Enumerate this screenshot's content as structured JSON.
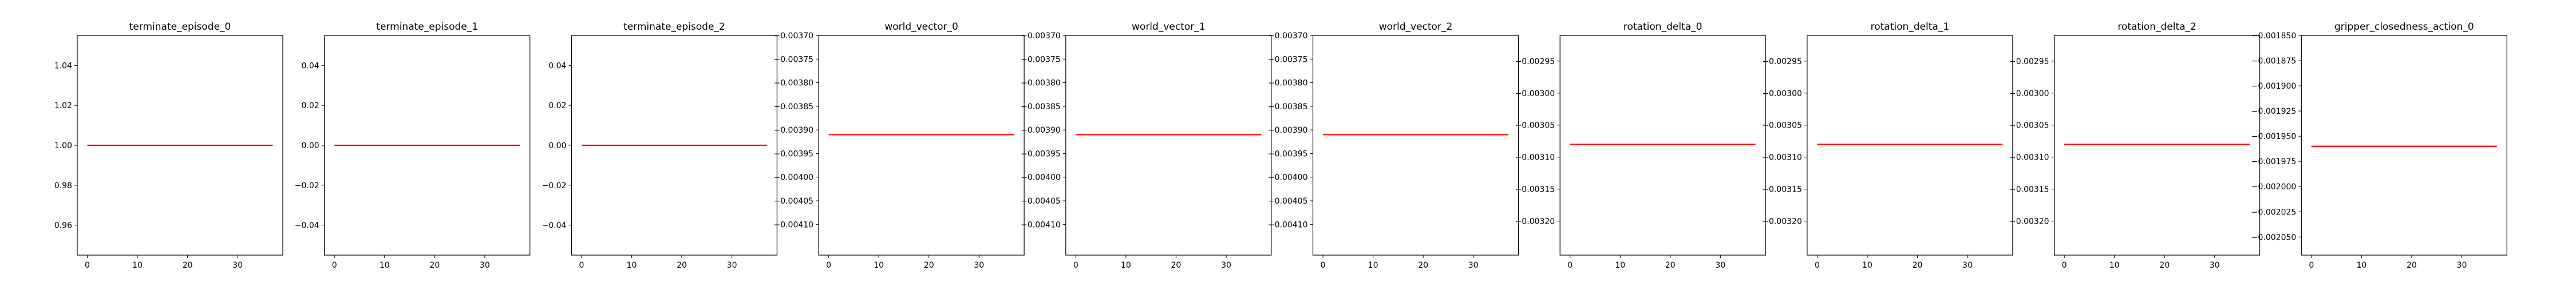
{
  "figure": {
    "panel_count": 10
  },
  "chart_data": [
    {
      "type": "line",
      "title": "terminate_episode_0",
      "xlim": [
        -2,
        39
      ],
      "ylim": [
        0.945,
        1.055
      ],
      "x_ticks": [
        0,
        10,
        20,
        30
      ],
      "x_tick_labels": [
        "0",
        "10",
        "20",
        "30"
      ],
      "y_ticks": [
        1.04,
        1.02,
        1.0,
        0.98,
        0.96
      ],
      "y_tick_labels": [
        "1.04",
        "1.02",
        "1.00",
        "0.98",
        "0.96"
      ],
      "series": [
        {
          "color": "#ff0000",
          "x": [
            0,
            37
          ],
          "y": [
            1.0,
            1.0
          ]
        }
      ],
      "grid": false
    },
    {
      "type": "line",
      "title": "terminate_episode_1",
      "xlim": [
        -2,
        39
      ],
      "ylim": [
        -0.055,
        0.055
      ],
      "x_ticks": [
        0,
        10,
        20,
        30
      ],
      "x_tick_labels": [
        "0",
        "10",
        "20",
        "30"
      ],
      "y_ticks": [
        0.04,
        0.02,
        0.0,
        -0.02,
        -0.04
      ],
      "y_tick_labels": [
        "0.04",
        "0.02",
        "0.00",
        "−0.02",
        "−0.04"
      ],
      "series": [
        {
          "color": "#ff0000",
          "x": [
            0,
            37
          ],
          "y": [
            0.0,
            0.0
          ]
        }
      ],
      "grid": false
    },
    {
      "type": "line",
      "title": "terminate_episode_2",
      "xlim": [
        -2,
        39
      ],
      "ylim": [
        -0.055,
        0.055
      ],
      "x_ticks": [
        0,
        10,
        20,
        30
      ],
      "x_tick_labels": [
        "0",
        "10",
        "20",
        "30"
      ],
      "y_ticks": [
        0.04,
        0.02,
        0.0,
        -0.02,
        -0.04
      ],
      "y_tick_labels": [
        "0.04",
        "0.02",
        "0.00",
        "−0.02",
        "−0.04"
      ],
      "series": [
        {
          "color": "#ff0000",
          "x": [
            0,
            37
          ],
          "y": [
            0.0,
            0.0
          ]
        }
      ],
      "grid": false
    },
    {
      "type": "line",
      "title": "world_vector_0",
      "xlim": [
        -2,
        39
      ],
      "ylim": [
        -0.004165,
        -0.0037
      ],
      "x_ticks": [
        0,
        10,
        20,
        30
      ],
      "x_tick_labels": [
        "0",
        "10",
        "20",
        "30"
      ],
      "y_ticks": [
        -0.0037,
        -0.00375,
        -0.0038,
        -0.00385,
        -0.0039,
        -0.00395,
        -0.004,
        -0.00405,
        -0.0041
      ],
      "y_tick_labels": [
        "−0.00370",
        "−0.00375",
        "−0.00380",
        "−0.00385",
        "−0.00390",
        "−0.00395",
        "−0.00400",
        "−0.00405",
        "−0.00410"
      ],
      "series": [
        {
          "color": "#ff0000",
          "x": [
            0,
            37
          ],
          "y": [
            -0.00391,
            -0.00391
          ]
        }
      ],
      "grid": false
    },
    {
      "type": "line",
      "title": "world_vector_1",
      "xlim": [
        -2,
        39
      ],
      "ylim": [
        -0.004165,
        -0.0037
      ],
      "x_ticks": [
        0,
        10,
        20,
        30
      ],
      "x_tick_labels": [
        "0",
        "10",
        "20",
        "30"
      ],
      "y_ticks": [
        -0.0037,
        -0.00375,
        -0.0038,
        -0.00385,
        -0.0039,
        -0.00395,
        -0.004,
        -0.00405,
        -0.0041
      ],
      "y_tick_labels": [
        "−0.00370",
        "−0.00375",
        "−0.00380",
        "−0.00385",
        "−0.00390",
        "−0.00395",
        "−0.00400",
        "−0.00405",
        "−0.00410"
      ],
      "series": [
        {
          "color": "#ff0000",
          "x": [
            0,
            37
          ],
          "y": [
            -0.00391,
            -0.00391
          ]
        }
      ],
      "grid": false
    },
    {
      "type": "line",
      "title": "world_vector_2",
      "xlim": [
        -2,
        39
      ],
      "ylim": [
        -0.004165,
        -0.0037
      ],
      "x_ticks": [
        0,
        10,
        20,
        30
      ],
      "x_tick_labels": [
        "0",
        "10",
        "20",
        "30"
      ],
      "y_ticks": [
        -0.0037,
        -0.00375,
        -0.0038,
        -0.00385,
        -0.0039,
        -0.00395,
        -0.004,
        -0.00405,
        -0.0041
      ],
      "y_tick_labels": [
        "−0.00370",
        "−0.00375",
        "−0.00380",
        "−0.00385",
        "−0.00390",
        "−0.00395",
        "−0.00400",
        "−0.00405",
        "−0.00410"
      ],
      "series": [
        {
          "color": "#ff0000",
          "x": [
            0,
            37
          ],
          "y": [
            -0.00391,
            -0.00391
          ]
        }
      ],
      "grid": false
    },
    {
      "type": "line",
      "title": "rotation_delta_0",
      "xlim": [
        -2,
        39
      ],
      "ylim": [
        -0.003253,
        -0.00291
      ],
      "x_ticks": [
        0,
        10,
        20,
        30
      ],
      "x_tick_labels": [
        "0",
        "10",
        "20",
        "30"
      ],
      "y_ticks": [
        -0.00295,
        -0.003,
        -0.00305,
        -0.0031,
        -0.00315,
        -0.0032
      ],
      "y_tick_labels": [
        "−0.00295",
        "−0.00300",
        "−0.00305",
        "−0.00310",
        "−0.00315",
        "−0.00320"
      ],
      "series": [
        {
          "color": "#ff0000",
          "x": [
            0,
            37
          ],
          "y": [
            -0.00308,
            -0.00308
          ]
        }
      ],
      "grid": false
    },
    {
      "type": "line",
      "title": "rotation_delta_1",
      "xlim": [
        -2,
        39
      ],
      "ylim": [
        -0.003253,
        -0.00291
      ],
      "x_ticks": [
        0,
        10,
        20,
        30
      ],
      "x_tick_labels": [
        "0",
        "10",
        "20",
        "30"
      ],
      "y_ticks": [
        -0.00295,
        -0.003,
        -0.00305,
        -0.0031,
        -0.00315,
        -0.0032
      ],
      "y_tick_labels": [
        "−0.00295",
        "−0.00300",
        "−0.00305",
        "−0.00310",
        "−0.00315",
        "−0.00320"
      ],
      "series": [
        {
          "color": "#ff0000",
          "x": [
            0,
            37
          ],
          "y": [
            -0.00308,
            -0.00308
          ]
        }
      ],
      "grid": false
    },
    {
      "type": "line",
      "title": "rotation_delta_2",
      "xlim": [
        -2,
        39
      ],
      "ylim": [
        -0.003253,
        -0.00291
      ],
      "x_ticks": [
        0,
        10,
        20,
        30
      ],
      "x_tick_labels": [
        "0",
        "10",
        "20",
        "30"
      ],
      "y_ticks": [
        -0.00295,
        -0.003,
        -0.00305,
        -0.0031,
        -0.00315,
        -0.0032
      ],
      "y_tick_labels": [
        "−0.00295",
        "−0.00300",
        "−0.00305",
        "−0.00310",
        "−0.00315",
        "−0.00320"
      ],
      "series": [
        {
          "color": "#ff0000",
          "x": [
            0,
            37
          ],
          "y": [
            -0.00308,
            -0.00308
          ]
        }
      ],
      "grid": false
    },
    {
      "type": "line",
      "title": "gripper_closedness_action_0",
      "xlim": [
        -2,
        39
      ],
      "ylim": [
        -0.002068,
        -0.00185
      ],
      "x_ticks": [
        0,
        10,
        20,
        30
      ],
      "x_tick_labels": [
        "0",
        "10",
        "20",
        "30"
      ],
      "y_ticks": [
        -0.00185,
        -0.001875,
        -0.0019,
        -0.001925,
        -0.00195,
        -0.001975,
        -0.002,
        -0.002025,
        -0.00205
      ],
      "y_tick_labels": [
        "−0.001850",
        "−0.001875",
        "−0.001900",
        "−0.001925",
        "−0.001950",
        "−0.001975",
        "−0.002000",
        "−0.002025",
        "−0.002050"
      ],
      "series": [
        {
          "color": "#ff0000",
          "x": [
            0,
            37
          ],
          "y": [
            -0.00196,
            -0.00196
          ]
        }
      ],
      "grid": false
    }
  ]
}
